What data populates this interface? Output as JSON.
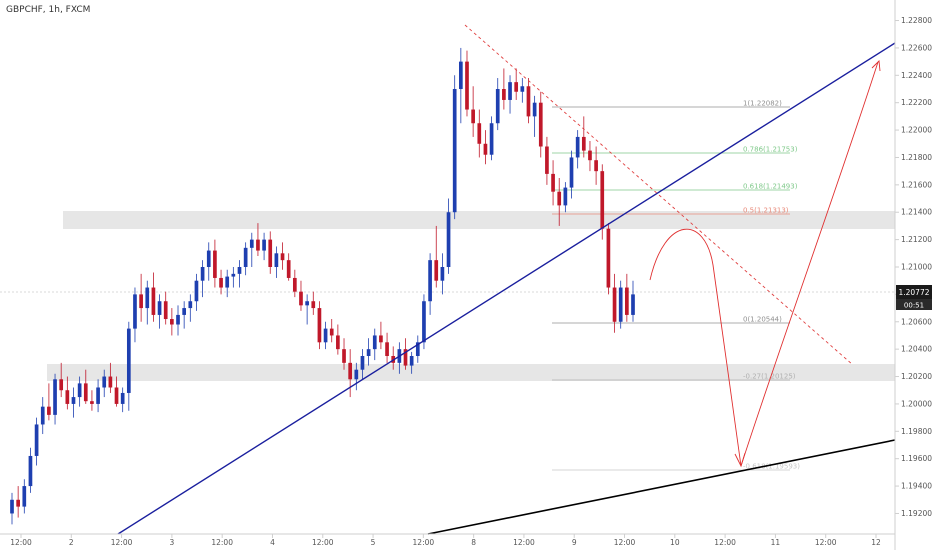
{
  "header": {
    "title": "GBPCHF, 1h, FXCM"
  },
  "price_axis": {
    "ticks": [
      "1.22800",
      "1.22600",
      "1.22400",
      "1.22200",
      "1.22000",
      "1.21800",
      "1.21600",
      "1.21400",
      "1.21200",
      "1.21000",
      "1.20800",
      "1.20600",
      "1.20400",
      "1.20200",
      "1.20000",
      "1.19800",
      "1.19600",
      "1.19400",
      "1.19200"
    ],
    "last_price": "1.20772",
    "countdown": "00:51"
  },
  "time_axis": {
    "ticks": [
      "12:00",
      "2",
      "12:00",
      "3",
      "12:00",
      "4",
      "12:00",
      "5",
      "12:00",
      "8",
      "12:00",
      "9",
      "12:00",
      "10",
      "12:00",
      "11",
      "12:00",
      "12"
    ]
  },
  "fibonacci": [
    {
      "label": "1(1.22082)",
      "color": "#909090"
    },
    {
      "label": "0.786(1.21753)",
      "color": "#7fc98a"
    },
    {
      "label": "0.618(1.21493)",
      "color": "#7fc98a"
    },
    {
      "label": "0.5(1.21313)",
      "color": "#e88a7a"
    },
    {
      "label": "0(1.20544)",
      "color": "#909090"
    },
    {
      "label": "-0.27(1.20125)",
      "color": "#b0b0b0"
    },
    {
      "label": "-0.618(1.19593)",
      "color": "#c8c8c8"
    }
  ],
  "colors": {
    "bull": "#1e3fb0",
    "bear": "#c0182a",
    "ascending_trendline": "#1a1f9e",
    "lower_trendline": "#000000",
    "descending_trendline": "#e04040",
    "projection": "#e03030",
    "zone": "#e6e6e6",
    "last_price_badge": "#1a1a1a"
  },
  "chart_data": {
    "type": "candlestick",
    "title": "GBPCHF, 1h, FXCM",
    "ylim": [
      1.1905,
      1.2295
    ],
    "price_ticks": [
      1.228,
      1.226,
      1.224,
      1.222,
      1.22,
      1.218,
      1.216,
      1.214,
      1.212,
      1.21,
      1.208,
      1.206,
      1.204,
      1.202,
      1.2,
      1.198,
      1.196,
      1.194,
      1.192
    ],
    "grid": false,
    "candles": [
      [
        1.192,
        1.1935,
        1.1912,
        1.193
      ],
      [
        1.193,
        1.194,
        1.1917,
        1.1925
      ],
      [
        1.1925,
        1.1945,
        1.192,
        1.194
      ],
      [
        1.194,
        1.1968,
        1.1935,
        1.1962
      ],
      [
        1.1962,
        1.199,
        1.1955,
        1.1985
      ],
      [
        1.1985,
        1.2005,
        1.1978,
        1.1998
      ],
      [
        1.1998,
        1.2015,
        1.1988,
        1.1992
      ],
      [
        1.1992,
        1.2022,
        1.1985,
        1.2018
      ],
      [
        1.2018,
        1.203,
        1.2005,
        1.201
      ],
      [
        1.201,
        1.202,
        1.1996,
        1.2
      ],
      [
        1.2,
        1.2012,
        1.199,
        1.2005
      ],
      [
        1.2005,
        1.202,
        1.1998,
        1.2015
      ],
      [
        1.2015,
        1.2025,
        1.2,
        1.2002
      ],
      [
        1.2002,
        1.201,
        1.1995,
        1.2
      ],
      [
        1.2,
        1.2018,
        1.1994,
        1.2012
      ],
      [
        1.2012,
        1.2025,
        1.2005,
        1.202
      ],
      [
        1.202,
        1.203,
        1.2008,
        1.2012
      ],
      [
        1.2012,
        1.202,
        1.1998,
        1.2
      ],
      [
        1.2,
        1.2012,
        1.1994,
        1.2008
      ],
      [
        1.2008,
        1.206,
        1.1995,
        1.2055
      ],
      [
        1.2055,
        1.2085,
        1.2045,
        1.208
      ],
      [
        1.208,
        1.2095,
        1.206,
        1.207
      ],
      [
        1.207,
        1.209,
        1.2058,
        1.2085
      ],
      [
        1.2085,
        1.2096,
        1.206,
        1.2065
      ],
      [
        1.2065,
        1.208,
        1.2055,
        1.2075
      ],
      [
        1.2075,
        1.2082,
        1.2058,
        1.2062
      ],
      [
        1.2062,
        1.207,
        1.205,
        1.2058
      ],
      [
        1.2058,
        1.2072,
        1.205,
        1.2065
      ],
      [
        1.2065,
        1.2075,
        1.2055,
        1.207
      ],
      [
        1.207,
        1.208,
        1.206,
        1.2075
      ],
      [
        1.2075,
        1.2095,
        1.2068,
        1.209
      ],
      [
        1.209,
        1.2105,
        1.2078,
        1.21
      ],
      [
        1.21,
        1.2118,
        1.209,
        1.2112
      ],
      [
        1.2112,
        1.212,
        1.2085,
        1.2092
      ],
      [
        1.2092,
        1.2098,
        1.208,
        1.2085
      ],
      [
        1.2085,
        1.2098,
        1.2078,
        1.2093
      ],
      [
        1.2093,
        1.21,
        1.2085,
        1.2095
      ],
      [
        1.2095,
        1.2105,
        1.2085,
        1.21
      ],
      [
        1.21,
        1.2118,
        1.2094,
        1.2114
      ],
      [
        1.2114,
        1.2125,
        1.21,
        1.212
      ],
      [
        1.212,
        1.2132,
        1.2108,
        1.2112
      ],
      [
        1.2112,
        1.2125,
        1.2105,
        1.212
      ],
      [
        1.212,
        1.2126,
        1.2095,
        1.21
      ],
      [
        1.21,
        1.2115,
        1.2092,
        1.211
      ],
      [
        1.211,
        1.2118,
        1.2098,
        1.2105
      ],
      [
        1.2105,
        1.211,
        1.209,
        1.2092
      ],
      [
        1.2092,
        1.2098,
        1.2078,
        1.2082
      ],
      [
        1.2082,
        1.209,
        1.2068,
        1.2072
      ],
      [
        1.2072,
        1.208,
        1.2058,
        1.2075
      ],
      [
        1.2075,
        1.2082,
        1.2065,
        1.207
      ],
      [
        1.207,
        1.2075,
        1.204,
        1.2045
      ],
      [
        1.2045,
        1.206,
        1.204,
        1.2055
      ],
      [
        1.2055,
        1.2062,
        1.2045,
        1.205
      ],
      [
        1.205,
        1.2058,
        1.2036,
        1.204
      ],
      [
        1.204,
        1.2048,
        1.2025,
        1.203
      ],
      [
        1.203,
        1.204,
        1.2005,
        1.2018
      ],
      [
        1.2018,
        1.203,
        1.201,
        1.2025
      ],
      [
        1.2025,
        1.204,
        1.2018,
        1.2035
      ],
      [
        1.2035,
        1.2048,
        1.2028,
        1.204
      ],
      [
        1.204,
        1.2055,
        1.2032,
        1.205
      ],
      [
        1.205,
        1.206,
        1.204,
        1.2045
      ],
      [
        1.2045,
        1.2052,
        1.203,
        1.2035
      ],
      [
        1.2035,
        1.2042,
        1.2025,
        1.203
      ],
      [
        1.203,
        1.2045,
        1.2022,
        1.204
      ],
      [
        1.204,
        1.2048,
        1.2025,
        1.2028
      ],
      [
        1.2028,
        1.2038,
        1.2022,
        1.2035
      ],
      [
        1.2035,
        1.205,
        1.203,
        1.2045
      ],
      [
        1.2045,
        1.208,
        1.204,
        1.2075
      ],
      [
        1.2075,
        1.211,
        1.2065,
        1.2105
      ],
      [
        1.2105,
        1.213,
        1.2085,
        1.209
      ],
      [
        1.209,
        1.211,
        1.208,
        1.21
      ],
      [
        1.21,
        1.215,
        1.2095,
        1.214
      ],
      [
        1.214,
        1.224,
        1.2135,
        1.223
      ],
      [
        1.223,
        1.226,
        1.2205,
        1.225
      ],
      [
        1.225,
        1.2258,
        1.221,
        1.2215
      ],
      [
        1.2215,
        1.2232,
        1.2195,
        1.2205
      ],
      [
        1.2205,
        1.2215,
        1.218,
        1.219
      ],
      [
        1.219,
        1.22,
        1.2175,
        1.2182
      ],
      [
        1.2182,
        1.221,
        1.2178,
        1.2205
      ],
      [
        1.2205,
        1.2238,
        1.22,
        1.223
      ],
      [
        1.223,
        1.2245,
        1.2215,
        1.2222
      ],
      [
        1.2222,
        1.224,
        1.2212,
        1.2235
      ],
      [
        1.2235,
        1.2245,
        1.2222,
        1.2228
      ],
      [
        1.2228,
        1.2238,
        1.222,
        1.2232
      ],
      [
        1.2232,
        1.2238,
        1.2205,
        1.221
      ],
      [
        1.221,
        1.2225,
        1.2195,
        1.222
      ],
      [
        1.222,
        1.2228,
        1.218,
        1.2188
      ],
      [
        1.2188,
        1.2195,
        1.216,
        1.2168
      ],
      [
        1.2168,
        1.2178,
        1.2145,
        1.2155
      ],
      [
        1.2155,
        1.2165,
        1.213,
        1.2145
      ],
      [
        1.2145,
        1.2162,
        1.214,
        1.2158
      ],
      [
        1.2158,
        1.2185,
        1.215,
        1.218
      ],
      [
        1.218,
        1.22,
        1.2172,
        1.2195
      ],
      [
        1.2195,
        1.221,
        1.218,
        1.2185
      ],
      [
        1.2185,
        1.2192,
        1.217,
        1.2178
      ],
      [
        1.2178,
        1.2188,
        1.216,
        1.217
      ],
      [
        1.217,
        1.2175,
        1.212,
        1.2128
      ],
      [
        1.2128,
        1.2132,
        1.208,
        1.2085
      ],
      [
        1.2085,
        1.2095,
        1.2052,
        1.206
      ],
      [
        1.206,
        1.209,
        1.2055,
        1.2085
      ],
      [
        1.2085,
        1.2095,
        1.206,
        1.2065
      ],
      [
        1.2065,
        1.209,
        1.206,
        1.208
      ]
    ]
  }
}
